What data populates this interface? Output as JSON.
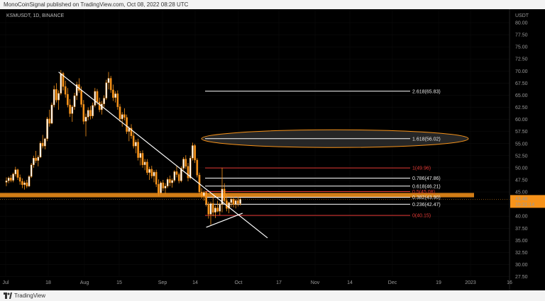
{
  "header": {
    "text": "MonoCoinSignal published on TradingView.com, Oct 08, 2022 08:28 UTC"
  },
  "footer": {
    "brand": "TradingView"
  },
  "chart_data": {
    "type": "candlestick",
    "symbol": "KSMUSDT, 1D, BINANCE",
    "currency": "USDT",
    "ylim": [
      25,
      82
    ],
    "y_ticks": [
      "80.00",
      "77.50",
      "75.00",
      "72.50",
      "70.00",
      "67.50",
      "65.00",
      "62.50",
      "60.00",
      "57.50",
      "55.00",
      "52.50",
      "50.00",
      "47.50",
      "45.00",
      "42.50",
      "40.00",
      "37.50",
      "35.00",
      "32.50",
      "30.00",
      "27.50"
    ],
    "x_ticks": [
      "Jul",
      "18",
      "Aug",
      "15",
      "Sep",
      "14",
      "Oct",
      "17",
      "Nov",
      "14",
      "Dec",
      "19",
      "2023",
      "16"
    ],
    "last_price": {
      "value": "43.48",
      "countdown": "15:31:14",
      "color": "#f7931a"
    },
    "support_zone": {
      "low": 43.9,
      "high": 44.8,
      "color": "#f7931a"
    },
    "fib_levels": [
      {
        "label": "2.618(65.83)",
        "value": 65.83,
        "color": "#ffffff"
      },
      {
        "label": "1.618(56.02)",
        "value": 56.02,
        "color": "#ffffff"
      },
      {
        "label": "1(49.96)",
        "value": 49.96,
        "color": "#e53935"
      },
      {
        "label": "0.786(47.86)",
        "value": 47.86,
        "color": "#ffffff"
      },
      {
        "label": "0.618(46.21)",
        "value": 46.21,
        "color": "#ffffff"
      },
      {
        "label": "0.5(45.08)",
        "value": 45.08,
        "color": "#e53935"
      },
      {
        "label": "0.382(43.90)",
        "value": 43.9,
        "color": "#ffffff"
      },
      {
        "label": "0.236(42.47)",
        "value": 42.47,
        "color": "#ffffff"
      },
      {
        "label": "0(40.15)",
        "value": 40.15,
        "color": "#e53935"
      }
    ],
    "target_ellipse": {
      "center": 56.02,
      "color": "#f7931a"
    },
    "candles": [
      [
        47.0,
        48.0,
        46.2,
        47.3
      ],
      [
        47.3,
        48.2,
        46.8,
        47.9
      ],
      [
        47.9,
        48.5,
        47.0,
        47.4
      ],
      [
        47.4,
        49.0,
        47.0,
        48.7
      ],
      [
        48.7,
        50.2,
        48.2,
        49.6
      ],
      [
        49.6,
        49.8,
        47.5,
        48.0
      ],
      [
        48.0,
        48.6,
        46.5,
        47.2
      ],
      [
        47.2,
        47.8,
        45.8,
        46.5
      ],
      [
        46.5,
        47.3,
        45.5,
        46.9
      ],
      [
        46.9,
        47.5,
        45.8,
        46.2
      ],
      [
        46.2,
        48.5,
        46.0,
        48.2
      ],
      [
        48.2,
        51.0,
        47.9,
        50.6
      ],
      [
        50.6,
        52.5,
        50.0,
        52.0
      ],
      [
        52.0,
        53.5,
        51.0,
        51.5
      ],
      [
        51.5,
        52.6,
        50.3,
        52.2
      ],
      [
        52.2,
        55.5,
        52.0,
        55.1
      ],
      [
        55.1,
        56.8,
        54.0,
        54.5
      ],
      [
        54.5,
        56.2,
        53.8,
        56.0
      ],
      [
        56.0,
        60.5,
        55.5,
        60.1
      ],
      [
        60.1,
        62.0,
        58.5,
        59.2
      ],
      [
        59.2,
        63.5,
        59.0,
        63.0
      ],
      [
        63.0,
        67.0,
        62.5,
        66.2
      ],
      [
        66.2,
        67.5,
        63.5,
        64.0
      ],
      [
        64.0,
        66.0,
        62.0,
        65.4
      ],
      [
        65.4,
        70.2,
        65.0,
        69.5
      ],
      [
        69.5,
        69.8,
        66.0,
        66.8
      ],
      [
        66.8,
        68.0,
        64.5,
        65.2
      ],
      [
        65.2,
        66.5,
        62.5,
        63.0
      ],
      [
        63.0,
        64.2,
        60.5,
        61.2
      ],
      [
        61.2,
        63.0,
        59.5,
        62.6
      ],
      [
        62.6,
        65.5,
        62.0,
        64.9
      ],
      [
        64.9,
        67.8,
        64.0,
        67.2
      ],
      [
        67.2,
        68.5,
        65.5,
        66.0
      ],
      [
        66.0,
        66.8,
        62.5,
        63.1
      ],
      [
        63.1,
        64.0,
        59.0,
        59.6
      ],
      [
        59.6,
        61.2,
        56.5,
        60.5
      ],
      [
        60.5,
        62.5,
        59.8,
        61.9
      ],
      [
        61.9,
        62.8,
        60.0,
        60.7
      ],
      [
        60.7,
        63.5,
        60.2,
        62.9
      ],
      [
        62.9,
        66.5,
        62.5,
        65.8
      ],
      [
        65.8,
        66.3,
        63.0,
        63.6
      ],
      [
        63.6,
        64.5,
        61.5,
        62.0
      ],
      [
        62.0,
        63.8,
        61.0,
        63.2
      ],
      [
        63.2,
        65.0,
        62.5,
        64.4
      ],
      [
        64.4,
        68.2,
        64.0,
        67.6
      ],
      [
        67.6,
        69.8,
        66.2,
        68.5
      ],
      [
        68.5,
        69.0,
        65.5,
        66.1
      ],
      [
        66.1,
        67.2,
        63.8,
        64.5
      ],
      [
        64.5,
        65.8,
        63.5,
        65.3
      ],
      [
        65.3,
        66.0,
        62.0,
        62.6
      ],
      [
        62.6,
        63.2,
        59.5,
        60.1
      ],
      [
        60.1,
        61.5,
        58.5,
        61.0
      ],
      [
        61.0,
        62.3,
        59.8,
        60.4
      ],
      [
        60.4,
        61.0,
        57.0,
        57.5
      ],
      [
        57.5,
        58.6,
        55.5,
        58.2
      ],
      [
        58.2,
        59.0,
        56.0,
        56.6
      ],
      [
        56.6,
        57.4,
        54.0,
        54.5
      ],
      [
        54.5,
        55.8,
        53.0,
        55.3
      ],
      [
        55.3,
        56.0,
        51.5,
        52.1
      ],
      [
        52.1,
        53.5,
        50.5,
        53.0
      ],
      [
        53.0,
        53.6,
        50.0,
        50.6
      ],
      [
        50.6,
        51.8,
        49.5,
        51.2
      ],
      [
        51.2,
        51.8,
        48.5,
        49.0
      ],
      [
        49.0,
        50.2,
        47.5,
        49.7
      ],
      [
        49.7,
        50.4,
        47.8,
        48.3
      ],
      [
        48.3,
        49.5,
        47.0,
        49.1
      ],
      [
        49.1,
        49.6,
        46.0,
        46.6
      ],
      [
        46.6,
        47.6,
        44.2,
        44.8
      ],
      [
        44.8,
        47.2,
        44.5,
        46.9
      ],
      [
        46.9,
        47.5,
        45.2,
        45.8
      ],
      [
        45.8,
        46.8,
        44.6,
        46.2
      ],
      [
        46.2,
        48.0,
        45.8,
        47.6
      ],
      [
        47.6,
        48.4,
        46.2,
        46.9
      ],
      [
        46.9,
        47.8,
        45.9,
        47.4
      ],
      [
        47.4,
        49.5,
        47.0,
        49.2
      ],
      [
        49.2,
        50.5,
        48.0,
        48.6
      ],
      [
        48.6,
        49.0,
        46.8,
        47.3
      ],
      [
        47.3,
        50.3,
        47.0,
        49.9
      ],
      [
        49.9,
        52.2,
        49.5,
        51.8
      ],
      [
        51.8,
        52.6,
        49.8,
        50.3
      ],
      [
        50.3,
        51.0,
        47.2,
        47.9
      ],
      [
        47.9,
        52.5,
        47.6,
        52.0
      ],
      [
        52.0,
        55.2,
        51.5,
        54.6
      ],
      [
        54.6,
        54.9,
        51.0,
        51.6
      ],
      [
        51.6,
        52.0,
        48.0,
        48.5
      ],
      [
        48.5,
        49.0,
        44.5,
        45.0
      ],
      [
        45.0,
        45.8,
        43.6,
        44.2
      ],
      [
        44.2,
        45.3,
        43.2,
        44.9
      ],
      [
        44.9,
        45.2,
        42.0,
        42.5
      ],
      [
        42.5,
        43.0,
        39.5,
        40.4
      ],
      [
        40.4,
        43.0,
        38.2,
        42.6
      ],
      [
        42.6,
        44.3,
        40.0,
        40.8
      ],
      [
        40.8,
        42.2,
        39.6,
        41.7
      ],
      [
        41.7,
        43.2,
        40.8,
        41.0
      ],
      [
        41.0,
        42.8,
        40.2,
        42.4
      ],
      [
        42.4,
        50.0,
        40.8,
        45.6
      ],
      [
        45.6,
        46.8,
        42.8,
        43.2
      ],
      [
        43.2,
        44.5,
        41.0,
        41.6
      ],
      [
        41.6,
        43.0,
        40.6,
        42.8
      ],
      [
        42.8,
        44.2,
        41.9,
        43.5
      ],
      [
        43.5,
        44.0,
        41.8,
        42.4
      ],
      [
        42.4,
        43.6,
        41.6,
        43.2
      ],
      [
        43.2,
        44.0,
        42.0,
        42.6
      ],
      [
        42.6,
        43.8,
        42.2,
        43.48
      ]
    ],
    "trendlines": [
      {
        "from": [
          23,
          69.8
        ],
        "to": [
          115,
          35.5
        ],
        "color": "#ffffff"
      },
      {
        "from": [
          88,
          37.7
        ],
        "to": [
          104,
          40.6
        ],
        "color": "#ffffff"
      }
    ]
  }
}
